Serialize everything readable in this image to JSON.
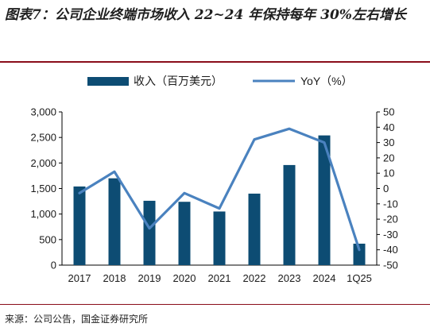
{
  "title": "图表7：公司企业终端市场收入 22~24 年保持每年 30%左右增长",
  "source": "来源：公司公告，国金证券研究所",
  "colors": {
    "bar": "#0d4c73",
    "line": "#4a82bf",
    "rule": "#8a0d1a"
  },
  "chart_data": {
    "type": "bar+line",
    "categories": [
      "2017",
      "2018",
      "2019",
      "2020",
      "2021",
      "2022",
      "2023",
      "2024",
      "1Q25"
    ],
    "series": [
      {
        "name": "收入（百万美元）",
        "type": "bar",
        "axis": "left",
        "values": [
          1540,
          1700,
          1260,
          1240,
          1050,
          1400,
          1960,
          2540,
          420
        ]
      },
      {
        "name": "YoY（%）",
        "type": "line",
        "axis": "right",
        "values": [
          -3,
          11,
          -26,
          -3,
          -13,
          32,
          39,
          30,
          -40
        ]
      }
    ],
    "left_axis": {
      "ylim": [
        0,
        3000
      ],
      "ticks": [
        "0",
        "500",
        "1,000",
        "1,500",
        "2,000",
        "2,500",
        "3,000"
      ]
    },
    "right_axis": {
      "ylim": [
        -50,
        50
      ],
      "ticks": [
        "-50",
        "-40",
        "-30",
        "-20",
        "-10",
        "0",
        "10",
        "20",
        "30",
        "40",
        "50"
      ]
    },
    "legend_position": "top",
    "grid": false
  }
}
